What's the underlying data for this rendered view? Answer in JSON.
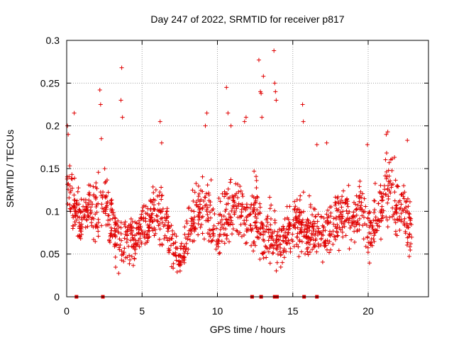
{
  "chart_data": {
    "type": "scatter",
    "title": "Day 247 of 2022, SRMTID for receiver p817",
    "xlabel": "GPS time / hours",
    "ylabel": "SRMTID / TECUs",
    "xlim": [
      0,
      24
    ],
    "ylim": [
      0,
      0.3
    ],
    "xticks": [
      0,
      5,
      10,
      15,
      20
    ],
    "yticks": [
      0,
      0.05,
      0.1,
      0.15,
      0.2,
      0.25,
      0.3
    ],
    "xtick_labels": [
      "0",
      "5",
      "10",
      "15",
      "20"
    ],
    "ytick_labels": [
      "0",
      "0.05",
      "0.1",
      "0.15",
      "0.2",
      "0.25",
      "0.3"
    ],
    "grid": true,
    "marker": "+",
    "color": "#e00000",
    "zero_markers_x": [
      0.65,
      2.4,
      12.3,
      12.9,
      13.8,
      13.95,
      15.75,
      16.6
    ],
    "outliers": [
      {
        "x": 0.05,
        "y": 0.2
      },
      {
        "x": 0.1,
        "y": 0.19
      },
      {
        "x": 0.5,
        "y": 0.215
      },
      {
        "x": 2.2,
        "y": 0.242
      },
      {
        "x": 2.25,
        "y": 0.225
      },
      {
        "x": 2.3,
        "y": 0.185
      },
      {
        "x": 3.65,
        "y": 0.268
      },
      {
        "x": 3.6,
        "y": 0.23
      },
      {
        "x": 3.7,
        "y": 0.21
      },
      {
        "x": 6.2,
        "y": 0.205
      },
      {
        "x": 6.3,
        "y": 0.18
      },
      {
        "x": 9.3,
        "y": 0.215
      },
      {
        "x": 9.2,
        "y": 0.2
      },
      {
        "x": 10.6,
        "y": 0.245
      },
      {
        "x": 10.7,
        "y": 0.215
      },
      {
        "x": 10.9,
        "y": 0.2
      },
      {
        "x": 11.9,
        "y": 0.21
      },
      {
        "x": 11.8,
        "y": 0.205
      },
      {
        "x": 12.75,
        "y": 0.277
      },
      {
        "x": 12.85,
        "y": 0.24
      },
      {
        "x": 12.9,
        "y": 0.238
      },
      {
        "x": 13.05,
        "y": 0.258
      },
      {
        "x": 12.95,
        "y": 0.21
      },
      {
        "x": 13.75,
        "y": 0.288
      },
      {
        "x": 13.8,
        "y": 0.25
      },
      {
        "x": 13.85,
        "y": 0.24
      },
      {
        "x": 13.9,
        "y": 0.23
      },
      {
        "x": 15.65,
        "y": 0.225
      },
      {
        "x": 15.7,
        "y": 0.205
      },
      {
        "x": 16.6,
        "y": 0.178
      },
      {
        "x": 17.25,
        "y": 0.18
      },
      {
        "x": 19.95,
        "y": 0.178
      },
      {
        "x": 21.2,
        "y": 0.19
      },
      {
        "x": 21.3,
        "y": 0.193
      },
      {
        "x": 22.6,
        "y": 0.183
      }
    ],
    "envelope": [
      {
        "x": 0.0,
        "y": 0.13,
        "s": 0.03
      },
      {
        "x": 0.5,
        "y": 0.1,
        "s": 0.025
      },
      {
        "x": 1.0,
        "y": 0.09,
        "s": 0.02
      },
      {
        "x": 1.5,
        "y": 0.11,
        "s": 0.022
      },
      {
        "x": 2.0,
        "y": 0.1,
        "s": 0.025
      },
      {
        "x": 2.5,
        "y": 0.11,
        "s": 0.025
      },
      {
        "x": 3.0,
        "y": 0.09,
        "s": 0.03
      },
      {
        "x": 3.5,
        "y": 0.06,
        "s": 0.02
      },
      {
        "x": 4.0,
        "y": 0.06,
        "s": 0.02
      },
      {
        "x": 4.5,
        "y": 0.07,
        "s": 0.02
      },
      {
        "x": 5.0,
        "y": 0.08,
        "s": 0.02
      },
      {
        "x": 5.5,
        "y": 0.09,
        "s": 0.022
      },
      {
        "x": 6.0,
        "y": 0.1,
        "s": 0.025
      },
      {
        "x": 6.5,
        "y": 0.09,
        "s": 0.025
      },
      {
        "x": 7.0,
        "y": 0.06,
        "s": 0.02
      },
      {
        "x": 7.5,
        "y": 0.045,
        "s": 0.015
      },
      {
        "x": 8.0,
        "y": 0.07,
        "s": 0.02
      },
      {
        "x": 8.5,
        "y": 0.09,
        "s": 0.022
      },
      {
        "x": 9.0,
        "y": 0.11,
        "s": 0.025
      },
      {
        "x": 9.5,
        "y": 0.09,
        "s": 0.025
      },
      {
        "x": 10.0,
        "y": 0.07,
        "s": 0.02
      },
      {
        "x": 10.5,
        "y": 0.09,
        "s": 0.025
      },
      {
        "x": 11.0,
        "y": 0.1,
        "s": 0.025
      },
      {
        "x": 11.5,
        "y": 0.11,
        "s": 0.03
      },
      {
        "x": 12.0,
        "y": 0.09,
        "s": 0.025
      },
      {
        "x": 12.5,
        "y": 0.1,
        "s": 0.03
      },
      {
        "x": 13.0,
        "y": 0.07,
        "s": 0.025
      },
      {
        "x": 13.5,
        "y": 0.08,
        "s": 0.025
      },
      {
        "x": 14.0,
        "y": 0.06,
        "s": 0.02
      },
      {
        "x": 14.5,
        "y": 0.07,
        "s": 0.02
      },
      {
        "x": 15.0,
        "y": 0.08,
        "s": 0.022
      },
      {
        "x": 15.5,
        "y": 0.09,
        "s": 0.025
      },
      {
        "x": 16.0,
        "y": 0.07,
        "s": 0.02
      },
      {
        "x": 16.5,
        "y": 0.08,
        "s": 0.022
      },
      {
        "x": 17.0,
        "y": 0.07,
        "s": 0.02
      },
      {
        "x": 17.5,
        "y": 0.08,
        "s": 0.022
      },
      {
        "x": 18.0,
        "y": 0.09,
        "s": 0.022
      },
      {
        "x": 18.5,
        "y": 0.1,
        "s": 0.025
      },
      {
        "x": 19.0,
        "y": 0.08,
        "s": 0.022
      },
      {
        "x": 19.5,
        "y": 0.11,
        "s": 0.025
      },
      {
        "x": 20.0,
        "y": 0.07,
        "s": 0.02
      },
      {
        "x": 20.5,
        "y": 0.09,
        "s": 0.022
      },
      {
        "x": 21.0,
        "y": 0.11,
        "s": 0.025
      },
      {
        "x": 21.5,
        "y": 0.13,
        "s": 0.03
      },
      {
        "x": 22.0,
        "y": 0.09,
        "s": 0.025
      },
      {
        "x": 22.5,
        "y": 0.1,
        "s": 0.025
      },
      {
        "x": 22.9,
        "y": 0.07,
        "s": 0.02
      }
    ]
  }
}
